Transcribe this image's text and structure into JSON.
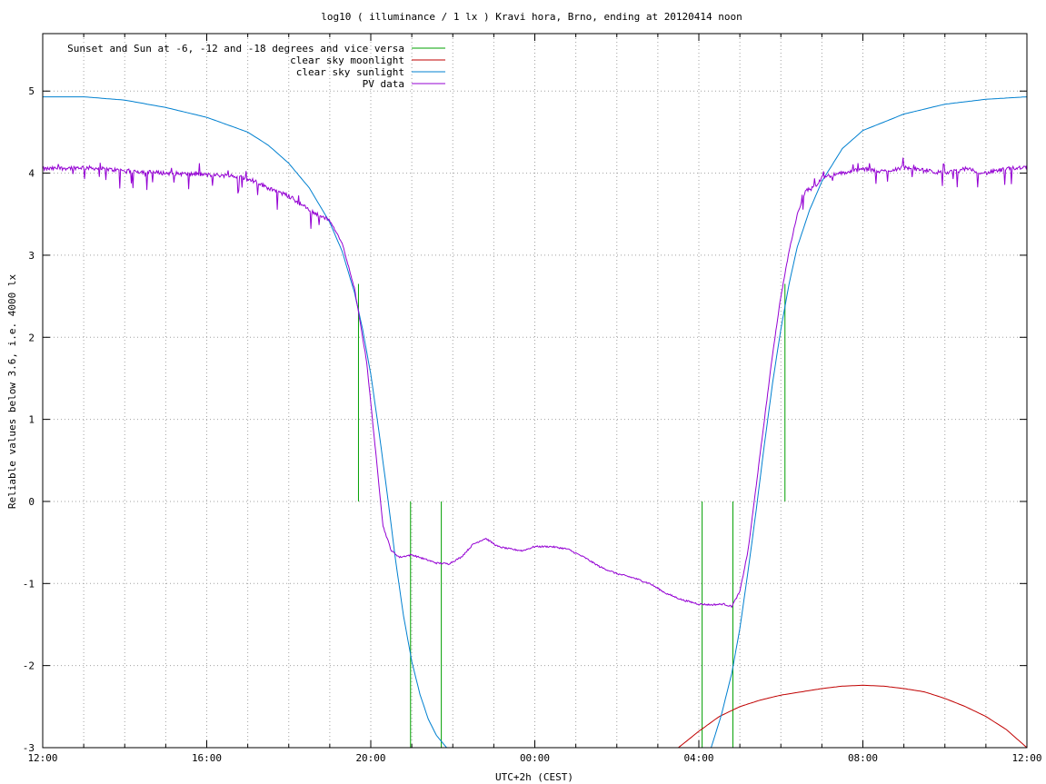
{
  "chart_data": {
    "type": "line",
    "title": "log10 ( illuminance / 1 lx ) Kravi hora, Brno, ending at 20120414 noon",
    "xlabel": "UTC+2h (CEST)",
    "ylabel": "Reliable values below 3.6, i.e. 4000 lx",
    "xlim": [
      12,
      36
    ],
    "ylim": [
      -3,
      5.7
    ],
    "x_ticks": [
      {
        "value": 12,
        "label": "12:00"
      },
      {
        "value": 16,
        "label": "16:00"
      },
      {
        "value": 20,
        "label": "20:00"
      },
      {
        "value": 24,
        "label": "00:00"
      },
      {
        "value": 28,
        "label": "04:00"
      },
      {
        "value": 32,
        "label": "08:00"
      },
      {
        "value": 36,
        "label": "12:00"
      }
    ],
    "x_minor_ticks": [
      13,
      14,
      15,
      17,
      18,
      19,
      21,
      22,
      23,
      25,
      26,
      27,
      29,
      30,
      31,
      33,
      34,
      35
    ],
    "y_ticks": [
      {
        "value": -3,
        "label": "-3"
      },
      {
        "value": -2,
        "label": "-2"
      },
      {
        "value": -1,
        "label": "-1"
      },
      {
        "value": 0,
        "label": "0"
      },
      {
        "value": 1,
        "label": "1"
      },
      {
        "value": 2,
        "label": "2"
      },
      {
        "value": 3,
        "label": "3"
      },
      {
        "value": 4,
        "label": "4"
      },
      {
        "value": 5,
        "label": "5"
      }
    ],
    "grid": true,
    "legend_position": "top-left",
    "series": [
      {
        "name": "Sunset and Sun at -6, -12 and -18 degrees and vice versa",
        "color": "#00a000",
        "kind": "vertical_lines",
        "lines": [
          {
            "x": 19.7,
            "y0": 0,
            "y1": 2.65
          },
          {
            "x": 20.97,
            "y0": -3,
            "y1": 0
          },
          {
            "x": 21.72,
            "y0": -3,
            "y1": 0
          },
          {
            "x": 28.08,
            "y0": -3,
            "y1": 0
          },
          {
            "x": 28.83,
            "y0": -3,
            "y1": 0
          },
          {
            "x": 30.1,
            "y0": 0,
            "y1": 2.65
          }
        ]
      },
      {
        "name": "clear sky moonlight",
        "color": "#c00000",
        "x": [
          27.5,
          28.0,
          28.5,
          29.0,
          29.5,
          30.0,
          30.5,
          31.0,
          31.5,
          32.0,
          32.5,
          33.0,
          33.5,
          34.0,
          34.5,
          35.0,
          35.5,
          36.0
        ],
        "y": [
          -3.0,
          -2.8,
          -2.62,
          -2.5,
          -2.42,
          -2.36,
          -2.32,
          -2.28,
          -2.25,
          -2.24,
          -2.25,
          -2.28,
          -2.32,
          -2.4,
          -2.5,
          -2.62,
          -2.78,
          -3.0
        ]
      },
      {
        "name": "clear sky sunlight",
        "color": "#0080d0",
        "x": [
          12.0,
          13.0,
          14.0,
          15.0,
          16.0,
          17.0,
          17.5,
          18.0,
          18.5,
          19.0,
          19.3,
          19.6,
          19.8,
          20.0,
          20.2,
          20.4,
          20.6,
          20.8,
          21.0,
          21.2,
          21.4,
          21.6,
          21.85,
          28.3,
          28.55,
          28.8,
          29.0,
          29.2,
          29.4,
          29.6,
          29.8,
          30.0,
          30.2,
          30.4,
          30.7,
          31.0,
          31.5,
          32.0,
          33.0,
          34.0,
          35.0,
          36.0
        ],
        "y": [
          4.93,
          4.93,
          4.89,
          4.8,
          4.68,
          4.5,
          4.34,
          4.12,
          3.82,
          3.4,
          3.05,
          2.55,
          2.1,
          1.55,
          0.85,
          0.1,
          -0.7,
          -1.4,
          -1.95,
          -2.35,
          -2.65,
          -2.85,
          -3.0,
          -3.0,
          -2.6,
          -2.1,
          -1.55,
          -0.85,
          -0.1,
          0.7,
          1.45,
          2.1,
          2.65,
          3.1,
          3.55,
          3.9,
          4.3,
          4.52,
          4.72,
          4.84,
          4.9,
          4.93
        ]
      },
      {
        "name": "PV data",
        "color": "#9400d3",
        "noise_until": 19.0,
        "noise_from": 30.5,
        "x": [
          12.0,
          13.0,
          14.0,
          15.0,
          16.0,
          16.5,
          17.0,
          17.5,
          18.0,
          18.5,
          19.0,
          19.3,
          19.6,
          19.9,
          20.1,
          20.3,
          20.5,
          20.7,
          21.0,
          21.3,
          21.6,
          21.9,
          22.2,
          22.5,
          22.8,
          23.1,
          23.4,
          23.7,
          24.0,
          24.4,
          24.8,
          25.2,
          25.6,
          26.0,
          26.4,
          26.8,
          27.2,
          27.6,
          28.0,
          28.3,
          28.6,
          28.8,
          29.0,
          29.2,
          29.4,
          29.6,
          29.8,
          30.0,
          30.2,
          30.4,
          30.6,
          30.8,
          31.0,
          31.5,
          32.0,
          32.5,
          33.0,
          33.5,
          34.0,
          34.5,
          35.0,
          35.5,
          36.0
        ],
        "y": [
          4.05,
          4.07,
          4.03,
          4.0,
          3.98,
          3.97,
          3.94,
          3.82,
          3.72,
          3.55,
          3.42,
          3.15,
          2.6,
          1.7,
          0.7,
          -0.3,
          -0.6,
          -0.68,
          -0.65,
          -0.7,
          -0.75,
          -0.76,
          -0.68,
          -0.52,
          -0.45,
          -0.55,
          -0.58,
          -0.6,
          -0.55,
          -0.55,
          -0.58,
          -0.68,
          -0.8,
          -0.88,
          -0.93,
          -1.0,
          -1.12,
          -1.2,
          -1.25,
          -1.26,
          -1.25,
          -1.28,
          -1.1,
          -0.6,
          0.2,
          1.0,
          1.8,
          2.5,
          3.05,
          3.5,
          3.78,
          3.82,
          3.95,
          4.0,
          4.05,
          4.02,
          4.07,
          4.03,
          4.0,
          4.05,
          4.0,
          4.05,
          4.08
        ]
      }
    ]
  }
}
